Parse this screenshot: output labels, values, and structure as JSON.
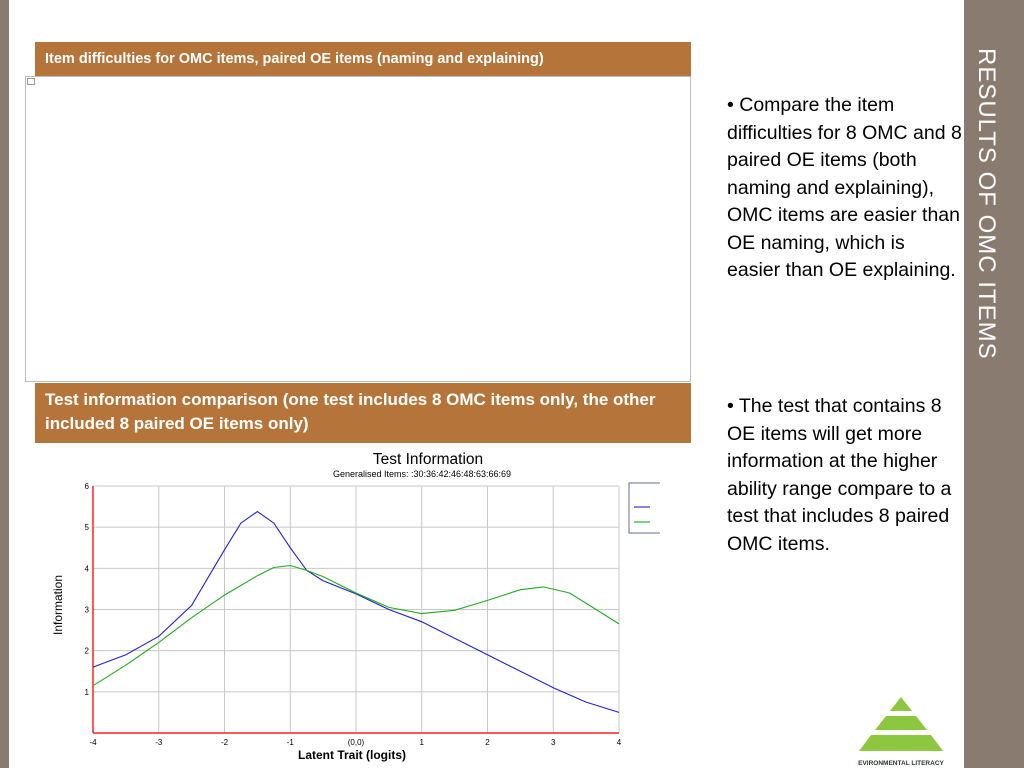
{
  "slide": {
    "vertical_title": "Results of OMC items",
    "caption_top": "Item difficulties for OMC items, paired OE items (naming and explaining)",
    "caption_bottom": "Test information comparison  (one test includes 8 OMC items only, the other included 8 paired OE items only)",
    "bullet_1": "• Compare the item difficulties for 8 OMC and 8 paired OE items (both naming and explaining), OMC items are easier than OE naming, which is easier than OE explaining.",
    "bullet_2": "• The test that contains 8 OE items will get more information at the higher ability range compare to a test that includes 8 paired OMC items.",
    "logo_text": "EVIRONMENTAL LITERACY",
    "colors": {
      "accent": "#b5753a",
      "band": "#8a7b70",
      "logo_green": "#8dc63f"
    }
  },
  "chart_data": {
    "type": "line",
    "title": "Test Information",
    "subtitle": "Generalised Items: :30:36:42:46:48:63:66:69",
    "xlabel": "Latent Trait (logits)",
    "ylabel": "Information",
    "xlim": [
      -4,
      4
    ],
    "ylim": [
      0,
      6
    ],
    "x_ticks": [
      "-4",
      "-3",
      "-2",
      "-1",
      "(0,0)",
      "1",
      "2",
      "3",
      "4"
    ],
    "y_ticks": [
      "1",
      "2",
      "3",
      "4",
      "5",
      "6"
    ],
    "grid": true,
    "legend_position": "top-right",
    "series": [
      {
        "color": "#2222cc",
        "x": [
          -4,
          -3.5,
          -3,
          -2.5,
          -2,
          -1.75,
          -1.5,
          -1.25,
          -1,
          -0.75,
          -0.5,
          0,
          0.5,
          1,
          1.5,
          2,
          2.5,
          3,
          3.5,
          4
        ],
        "y": [
          1.6,
          1.9,
          2.35,
          3.1,
          4.45,
          5.1,
          5.38,
          5.1,
          4.5,
          3.95,
          3.7,
          3.38,
          3.0,
          2.7,
          2.3,
          1.9,
          1.5,
          1.1,
          0.75,
          0.5
        ]
      },
      {
        "color": "#22aa22",
        "x": [
          -4,
          -3.5,
          -3,
          -2.5,
          -2,
          -1.5,
          -1.25,
          -1,
          -0.75,
          -0.5,
          0,
          0.5,
          1,
          1.5,
          2,
          2.5,
          2.85,
          3.25,
          3.6,
          4
        ],
        "y": [
          1.15,
          1.65,
          2.2,
          2.8,
          3.35,
          3.82,
          4.02,
          4.07,
          3.95,
          3.8,
          3.4,
          3.05,
          2.9,
          2.98,
          3.22,
          3.48,
          3.55,
          3.4,
          3.05,
          2.65
        ]
      }
    ]
  }
}
